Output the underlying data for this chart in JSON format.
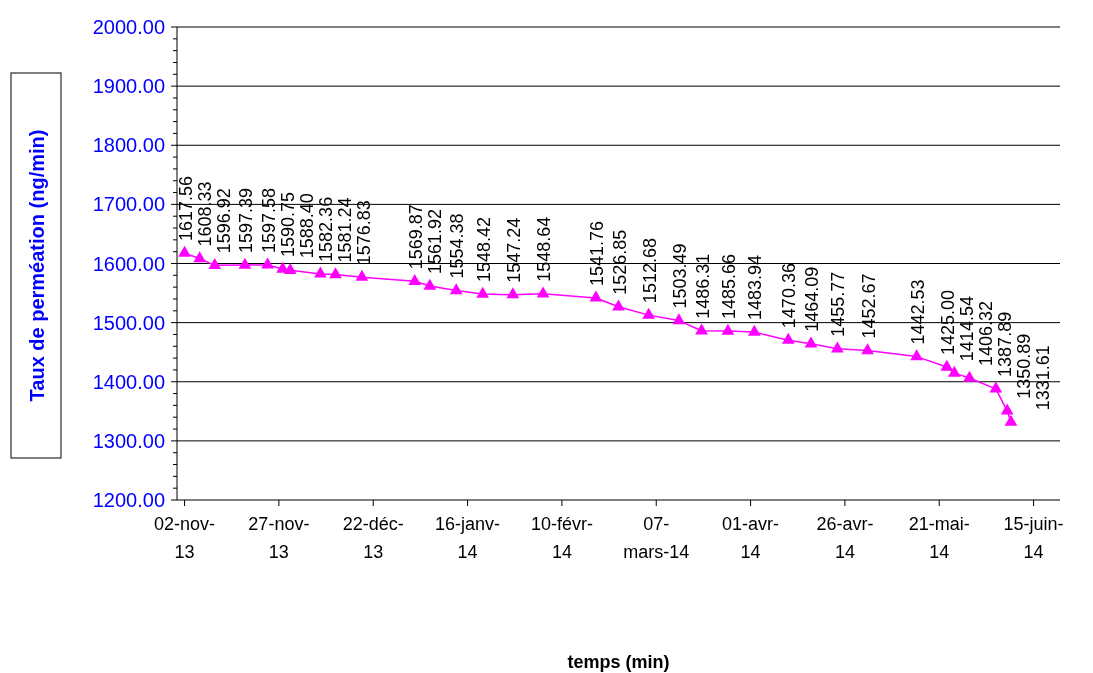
{
  "chart_data": {
    "type": "line",
    "xlabel": "temps (min)",
    "ylabel": "Taux de perméation (ng/min)",
    "x": [
      "2013-11-02",
      "2013-11-06",
      "2013-11-10",
      "2013-11-18",
      "2013-11-24",
      "2013-11-28",
      "2013-11-30",
      "2013-12-08",
      "2013-12-12",
      "2013-12-19",
      "2014-01-02",
      "2014-01-06",
      "2014-01-13",
      "2014-01-20",
      "2014-01-28",
      "2014-02-05",
      "2014-02-19",
      "2014-02-25",
      "2014-03-05",
      "2014-03-13",
      "2014-03-19",
      "2014-03-26",
      "2014-04-02",
      "2014-04-11",
      "2014-04-17",
      "2014-04-24",
      "2014-05-02",
      "2014-05-15",
      "2014-05-23",
      "2014-05-25",
      "2014-05-29",
      "2014-06-05",
      "2014-06-08",
      "2014-06-09"
    ],
    "series": [
      {
        "color": "#ff00ff",
        "value_labels": [
          "1617.56",
          "1608.33",
          "1596.92",
          "1597.39",
          "1597.58",
          "1590.75",
          "1588.40",
          "1582.36",
          "1581.24",
          "1576.83",
          "1569.87",
          "1561.92",
          "1554.38",
          "1548.42",
          "1547.24",
          "1548.64",
          "1541.76",
          "1526.85",
          "1512.68",
          "1503.49",
          "1486.31",
          "1485.66",
          "1483.94",
          "1470.36",
          "1464.09",
          "1455.77",
          "1452.67",
          "1442.53",
          "1425.00",
          "1414.54",
          "1406.32",
          "1387.89",
          "1350.89",
          "1331.61"
        ],
        "values": [
          1617.56,
          1608.33,
          1596.92,
          1597.39,
          1597.58,
          1590.75,
          1588.4,
          1582.36,
          1581.24,
          1576.83,
          1569.87,
          1561.92,
          1554.38,
          1548.42,
          1547.24,
          1548.64,
          1541.76,
          1526.85,
          1512.68,
          1503.49,
          1486.31,
          1485.66,
          1483.94,
          1470.36,
          1464.09,
          1455.77,
          1452.67,
          1442.53,
          1425.0,
          1414.54,
          1406.32,
          1387.89,
          1350.89,
          1331.61
        ]
      }
    ],
    "xlim": [
      "2013-10-31",
      "2014-06-22"
    ],
    "xticks": [
      {
        "value": "2013-11-02",
        "label": "02-nov-13"
      },
      {
        "value": "2013-11-27",
        "label": "27-nov-13"
      },
      {
        "value": "2013-12-22",
        "label": "22-déc-13"
      },
      {
        "value": "2014-01-16",
        "label": "16-janv-14"
      },
      {
        "value": "2014-02-10",
        "label": "10-févr-14"
      },
      {
        "value": "2014-03-07",
        "label": "07-mars-14"
      },
      {
        "value": "2014-04-01",
        "label": "01-avr-14"
      },
      {
        "value": "2014-04-26",
        "label": "26-avr-14"
      },
      {
        "value": "2014-05-21",
        "label": "21-mai-14"
      },
      {
        "value": "2014-06-15",
        "label": "15-juin-14"
      }
    ],
    "ylim": [
      1200,
      2000
    ],
    "yticks": [
      {
        "value": 1200,
        "label": "1200.00"
      },
      {
        "value": 1220,
        "label": null
      },
      {
        "value": 1240,
        "label": null
      },
      {
        "value": 1260,
        "label": null
      },
      {
        "value": 1280,
        "label": null
      },
      {
        "value": 1300,
        "label": "1300.00"
      },
      {
        "value": 1320,
        "label": null
      },
      {
        "value": 1340,
        "label": null
      },
      {
        "value": 1360,
        "label": null
      },
      {
        "value": 1380,
        "label": null
      },
      {
        "value": 1400,
        "label": "1400.00"
      },
      {
        "value": 1420,
        "label": null
      },
      {
        "value": 1440,
        "label": null
      },
      {
        "value": 1460,
        "label": null
      },
      {
        "value": 1480,
        "label": null
      },
      {
        "value": 1500,
        "label": "1500.00"
      },
      {
        "value": 1520,
        "label": null
      },
      {
        "value": 1540,
        "label": null
      },
      {
        "value": 1560,
        "label": null
      },
      {
        "value": 1580,
        "label": null
      },
      {
        "value": 1600,
        "label": "1600.00"
      },
      {
        "value": 1620,
        "label": null
      },
      {
        "value": 1640,
        "label": null
      },
      {
        "value": 1660,
        "label": null
      },
      {
        "value": 1680,
        "label": null
      },
      {
        "value": 1700,
        "label": "1700.00"
      },
      {
        "value": 1720,
        "label": null
      },
      {
        "value": 1740,
        "label": null
      },
      {
        "value": 1760,
        "label": null
      },
      {
        "value": 1780,
        "label": null
      },
      {
        "value": 1800,
        "label": "1800.00"
      },
      {
        "value": 1820,
        "label": null
      },
      {
        "value": 1840,
        "label": null
      },
      {
        "value": 1860,
        "label": null
      },
      {
        "value": 1880,
        "label": null
      },
      {
        "value": 1900,
        "label": "1900.00"
      },
      {
        "value": 1920,
        "label": null
      },
      {
        "value": 1940,
        "label": null
      },
      {
        "value": 1960,
        "label": null
      },
      {
        "value": 1980,
        "label": null
      },
      {
        "value": 2000,
        "label": "2000.00"
      }
    ],
    "grid": "y",
    "marker": "triangle",
    "line_style": "solid"
  }
}
